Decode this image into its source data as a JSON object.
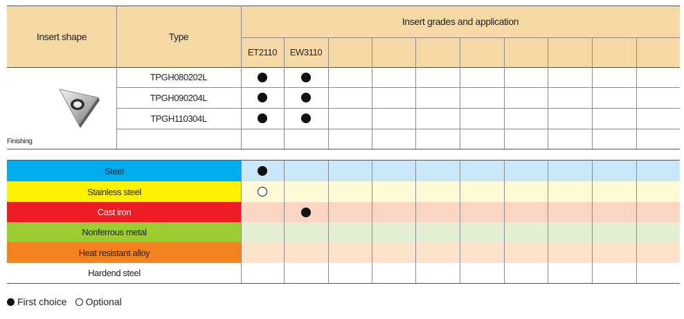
{
  "header": {
    "insert_shape": "Insert shape",
    "type": "Type",
    "grades_title": "Insert grades and application",
    "grades": [
      "ET2110",
      "EW3110",
      "",
      "",
      "",
      "",
      "",
      "",
      "",
      ""
    ]
  },
  "shape_label": "Finishing",
  "types": [
    {
      "name": "TPGH080202L",
      "marks": [
        "full",
        "full"
      ]
    },
    {
      "name": "TPGH090204L",
      "marks": [
        "full",
        "full"
      ]
    },
    {
      "name": "TPGH110304L",
      "marks": [
        "full",
        "full"
      ]
    },
    {
      "name": "",
      "marks": [
        "",
        ""
      ]
    }
  ],
  "materials": [
    {
      "name": "Steel",
      "color": "#00aeef",
      "tint": "#c9e7f8",
      "marks": [
        "full",
        ""
      ]
    },
    {
      "name": "Stainless steel",
      "color": "#fff200",
      "tint": "#fffbd9",
      "marks": [
        "open",
        ""
      ]
    },
    {
      "name": "Cast iron",
      "color": "#ed1c24",
      "tint": "#fbd5c4",
      "marks": [
        "",
        "full"
      ]
    },
    {
      "name": "Nonferrous metal",
      "color": "#9acd32",
      "tint": "#e3efd5",
      "marks": [
        "",
        ""
      ]
    },
    {
      "name": "Heat resistant alloy",
      "color": "#f58220",
      "tint": "#fde3cc",
      "marks": [
        "",
        ""
      ]
    },
    {
      "name": "Hardend steel",
      "color": "#ffffff",
      "tint": "#ffffff",
      "marks": [
        "",
        ""
      ]
    }
  ],
  "legend": {
    "first_choice": "First choice",
    "optional": "Optional"
  },
  "colors": {
    "header_bg": "#f7d9a8"
  }
}
